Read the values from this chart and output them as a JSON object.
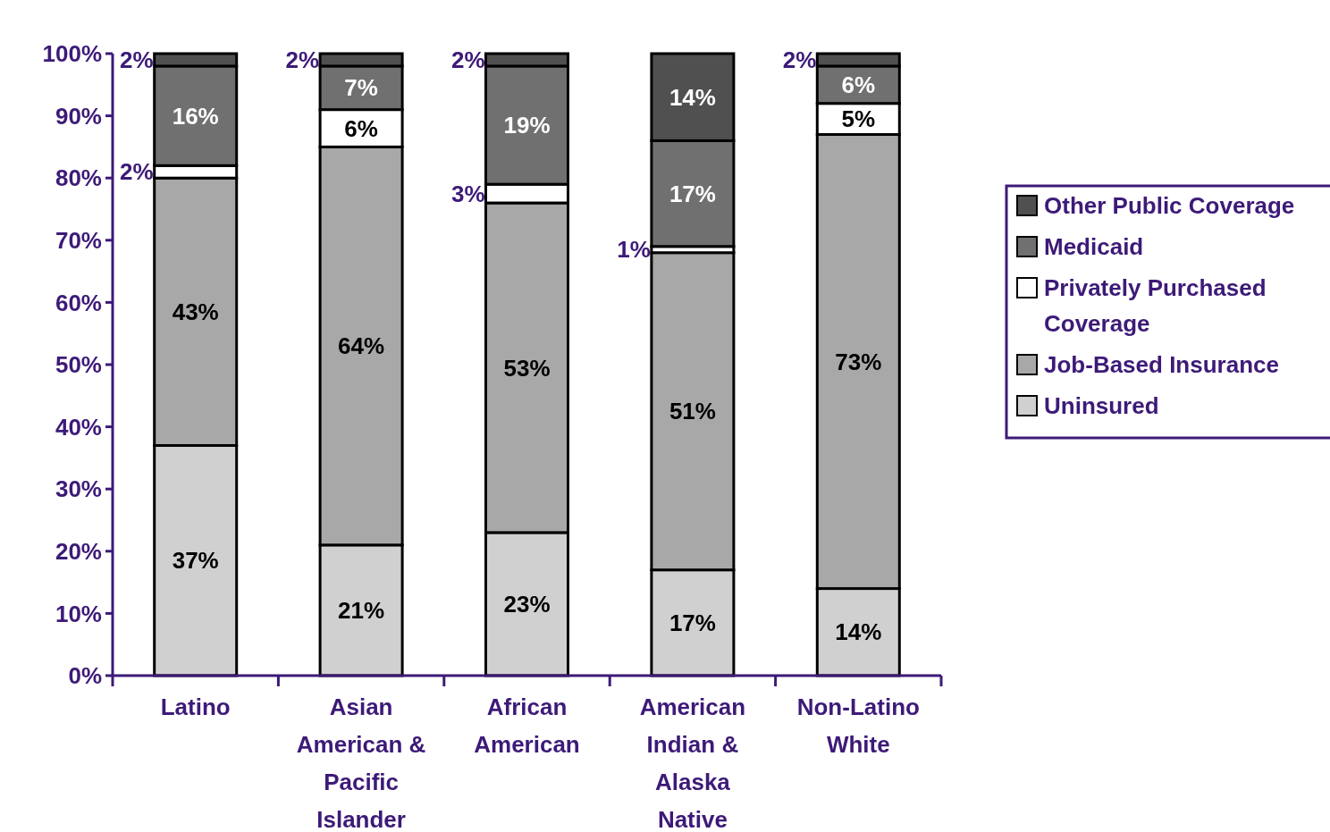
{
  "chart_data": {
    "type": "bar",
    "stacked": true,
    "categories": [
      "Latino",
      "Asian American & Pacific Islander",
      "African American",
      "American Indian & Alaska Native",
      "Non-Latino White"
    ],
    "series": [
      {
        "name": "Uninsured",
        "color": "#d0d0d0",
        "values": [
          37,
          21,
          23,
          17,
          14
        ],
        "value_labels": [
          "37%",
          "21%",
          "23%",
          "17%",
          "14%"
        ]
      },
      {
        "name": "Job-Based Insurance",
        "color": "#a8a8a8",
        "values": [
          43,
          64,
          53,
          51,
          73
        ],
        "value_labels": [
          "43%",
          "64%",
          "53%",
          "51%",
          "73%"
        ]
      },
      {
        "name": "Privately Purchased Coverage",
        "color": "#ffffff",
        "values": [
          2,
          6,
          3,
          1,
          5
        ],
        "value_labels": [
          "2%",
          "6%",
          "3%",
          "1%",
          "5%"
        ]
      },
      {
        "name": "Medicaid",
        "color": "#707070",
        "values": [
          16,
          7,
          19,
          17,
          6
        ],
        "value_labels": [
          "16%",
          "7%",
          "19%",
          "17%",
          "6%"
        ]
      },
      {
        "name": "Other Public Coverage",
        "color": "#505050",
        "values": [
          2,
          2,
          2,
          14,
          2
        ],
        "value_labels": [
          "2%",
          "2%",
          "2%",
          "14%",
          "2%"
        ]
      }
    ],
    "ylim": [
      0,
      100
    ],
    "yticks": [
      {
        "value": 0,
        "label": "0%"
      },
      {
        "value": 10,
        "label": "10%"
      },
      {
        "value": 20,
        "label": "20%"
      },
      {
        "value": 30,
        "label": "30%"
      },
      {
        "value": 40,
        "label": "40%"
      },
      {
        "value": 50,
        "label": "50%"
      },
      {
        "value": 60,
        "label": "60%"
      },
      {
        "value": 70,
        "label": "70%"
      },
      {
        "value": 80,
        "label": "80%"
      },
      {
        "value": 90,
        "label": "90%"
      },
      {
        "value": 100,
        "label": "100%"
      }
    ],
    "legend": "right",
    "grid": false
  }
}
